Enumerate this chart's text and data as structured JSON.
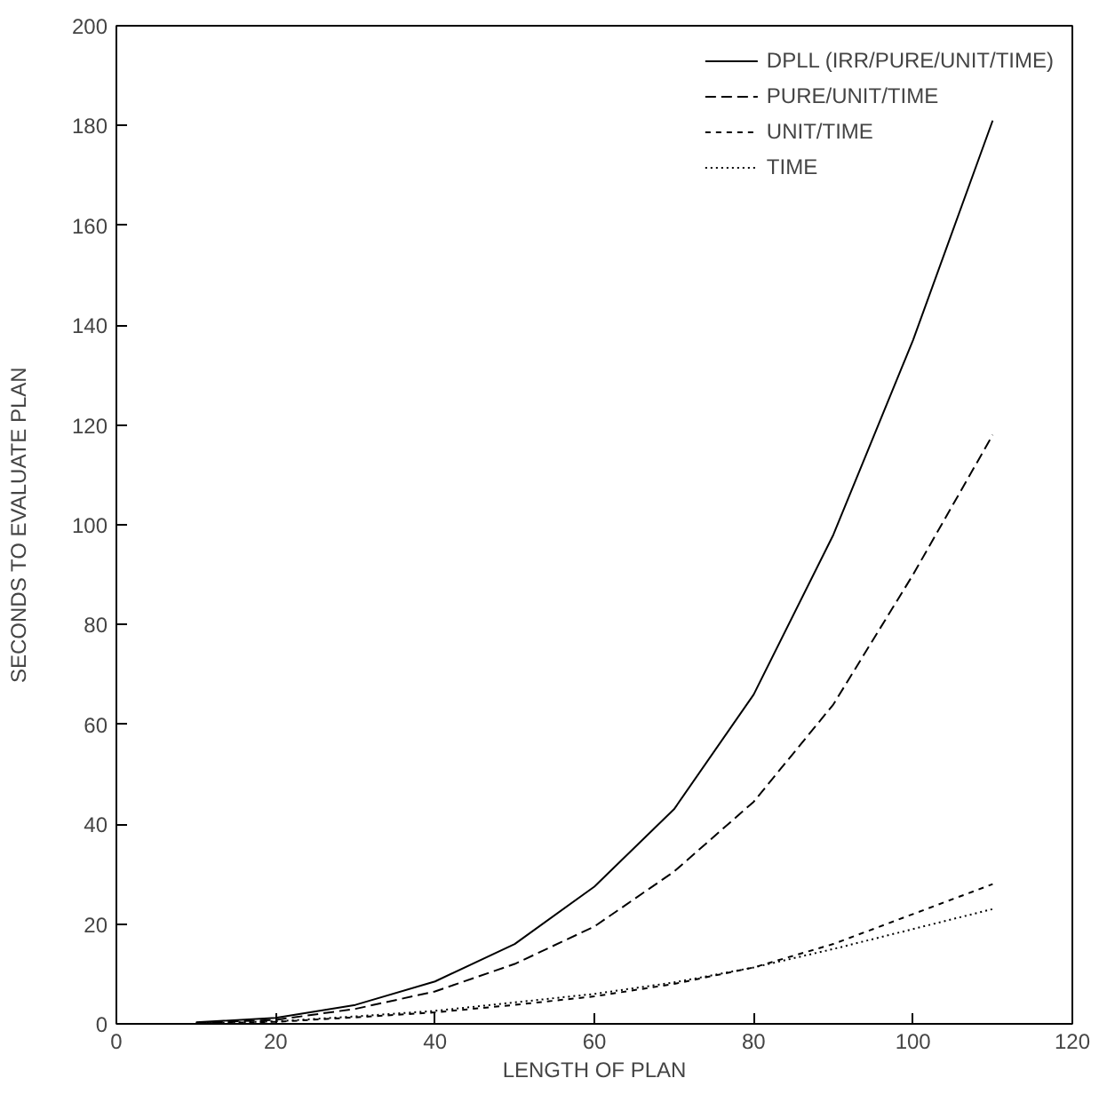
{
  "chart_data": {
    "type": "line",
    "xlabel": "LENGTH OF PLAN",
    "ylabel": "SECONDS TO EVALUATE PLAN",
    "x": [
      10,
      20,
      30,
      40,
      50,
      60,
      70,
      80,
      90,
      100,
      110
    ],
    "series": [
      {
        "name": "DPLL (IRR/PURE/UNIT/TIME)",
        "color": "#000000",
        "line_style": "solid",
        "values": [
          0.3,
          1.2,
          3.8,
          8.5,
          16,
          27.5,
          43,
          66,
          98,
          137,
          181
        ]
      },
      {
        "name": "PURE/UNIT/TIME",
        "color": "#000000",
        "line_style": "dashed",
        "values": [
          0.2,
          0.8,
          3,
          6.5,
          12,
          19.5,
          30.5,
          44.5,
          64,
          90,
          118
        ]
      },
      {
        "name": "UNIT/TIME",
        "color": "#000000",
        "line_style": "dashed",
        "values": [
          0.1,
          0.4,
          1.3,
          2.3,
          3.8,
          5.5,
          8,
          11.3,
          16,
          22,
          28
        ]
      },
      {
        "name": "TIME",
        "color": "#000000",
        "line_style": "dotted",
        "values": [
          0.1,
          0.5,
          1.5,
          2.6,
          4.3,
          6,
          8.3,
          11.3,
          15,
          19,
          23
        ]
      }
    ],
    "xlim": [
      0,
      120
    ],
    "xticks": [
      0,
      20,
      40,
      60,
      80,
      100,
      120
    ],
    "ylim": [
      0,
      200
    ],
    "yticks": [
      0,
      20,
      40,
      60,
      80,
      100,
      120,
      140,
      160,
      180,
      200
    ],
    "grid": false,
    "legend": "top right",
    "marker": "none"
  }
}
